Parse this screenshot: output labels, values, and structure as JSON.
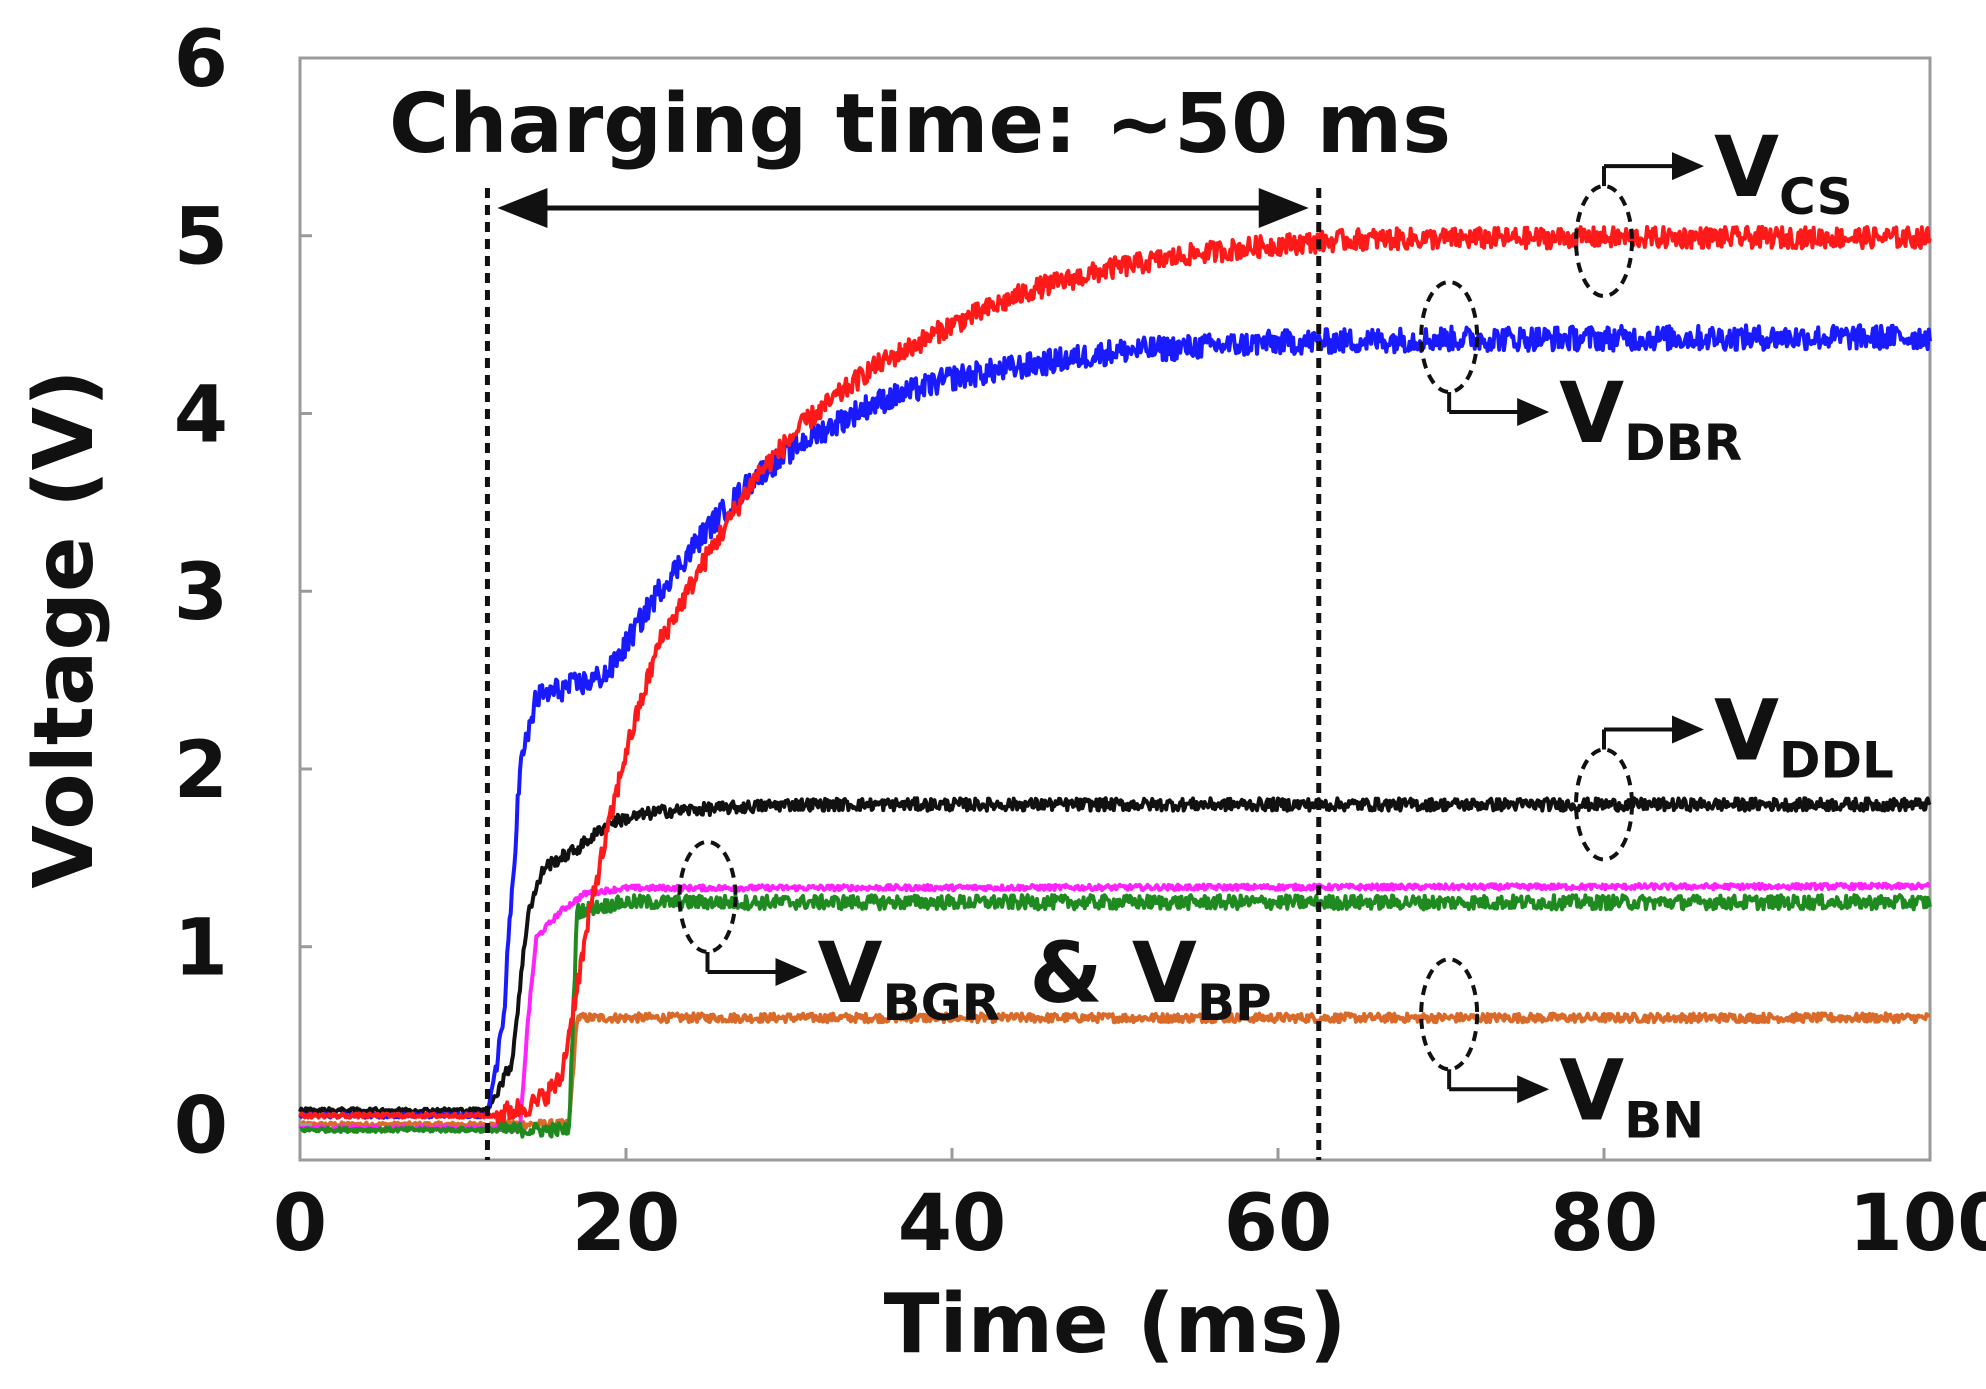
{
  "chart_data": {
    "type": "line",
    "title": "",
    "xlabel": "Time (ms)",
    "ylabel": "Voltage (V)",
    "xlim": [
      0,
      100
    ],
    "ylim": [
      -0.2,
      6
    ],
    "xticks": [
      0,
      20,
      40,
      60,
      80,
      100
    ],
    "yticks": [
      0,
      1,
      2,
      3,
      4,
      5,
      6
    ],
    "xtick_labels": [
      "0",
      "20",
      "40",
      "60",
      "80",
      "100"
    ],
    "ytick_labels": [
      "0",
      "1",
      "2",
      "3",
      "4",
      "5",
      "6"
    ],
    "grid": false,
    "annotation": {
      "text": "Charging time: ~50 ms",
      "start_x": 11.5,
      "end_x": 62.5
    },
    "series": [
      {
        "name": "VCS",
        "label_main": "V",
        "label_sub": "CS",
        "color": "#ff1a1a",
        "noise": 0.06,
        "label_y": 5.15,
        "marker_x": 80,
        "points": [
          [
            0,
            0.05
          ],
          [
            12,
            0.05
          ],
          [
            14.5,
            0.12
          ],
          [
            16,
            0.25
          ],
          [
            18,
            1.3
          ],
          [
            20,
            2.1
          ],
          [
            22,
            2.7
          ],
          [
            25,
            3.2
          ],
          [
            28,
            3.65
          ],
          [
            31,
            3.95
          ],
          [
            35,
            4.25
          ],
          [
            40,
            4.5
          ],
          [
            45,
            4.7
          ],
          [
            50,
            4.82
          ],
          [
            55,
            4.9
          ],
          [
            60,
            4.95
          ],
          [
            65,
            4.98
          ],
          [
            80,
            4.99
          ],
          [
            100,
            4.99
          ]
        ]
      },
      {
        "name": "VDBR",
        "label_main": "V",
        "label_sub": "DBR",
        "color": "#1a1aff",
        "noise": 0.07,
        "label_y": 4.1,
        "marker_x": 70,
        "points": [
          [
            0,
            0.05
          ],
          [
            11.5,
            0.05
          ],
          [
            12.5,
            0.6
          ],
          [
            13.5,
            2.0
          ],
          [
            14.5,
            2.4
          ],
          [
            16,
            2.45
          ],
          [
            18,
            2.5
          ],
          [
            19,
            2.55
          ],
          [
            20,
            2.7
          ],
          [
            22,
            3.0
          ],
          [
            25,
            3.35
          ],
          [
            28,
            3.65
          ],
          [
            31,
            3.85
          ],
          [
            35,
            4.05
          ],
          [
            40,
            4.2
          ],
          [
            50,
            4.35
          ],
          [
            60,
            4.4
          ],
          [
            70,
            4.42
          ],
          [
            100,
            4.43
          ]
        ]
      },
      {
        "name": "VDDL",
        "label_main": "V",
        "label_sub": "DDL",
        "color": "#111111",
        "noise": 0.035,
        "label_y": 2.15,
        "marker_x": 80,
        "points": [
          [
            0,
            0.08
          ],
          [
            11.5,
            0.08
          ],
          [
            13,
            0.35
          ],
          [
            14,
            1.2
          ],
          [
            15,
            1.45
          ],
          [
            17,
            1.55
          ],
          [
            19,
            1.7
          ],
          [
            22,
            1.76
          ],
          [
            30,
            1.8
          ],
          [
            100,
            1.8
          ]
        ]
      },
      {
        "name": "VBGR",
        "label_main": "V",
        "label_sub": "BGR",
        "color": "#ff22ff",
        "noise": 0.015,
        "label_y": null,
        "marker_x": null,
        "points": [
          [
            0,
            -0.02
          ],
          [
            13.5,
            -0.02
          ],
          [
            14,
            0.6
          ],
          [
            14.5,
            1.05
          ],
          [
            16,
            1.2
          ],
          [
            17.5,
            1.3
          ],
          [
            20,
            1.33
          ],
          [
            100,
            1.34
          ]
        ]
      },
      {
        "name": "VBP",
        "label_main": "V",
        "label_sub": "BP",
        "color": "#1f8a1f",
        "noise": 0.04,
        "label_y": 0.95,
        "marker_x": 25,
        "points": [
          [
            0,
            -0.03
          ],
          [
            16.5,
            -0.03
          ],
          [
            17,
            1.2
          ],
          [
            18,
            1.22
          ],
          [
            20,
            1.25
          ],
          [
            100,
            1.25
          ]
        ]
      },
      {
        "name": "VBN",
        "label_main": "V",
        "label_sub": "BN",
        "color": "#d96a2a",
        "noise": 0.025,
        "label_y": 0.35,
        "marker_x": 70,
        "points": [
          [
            0,
            0.0
          ],
          [
            16.5,
            0.0
          ],
          [
            17,
            0.6
          ],
          [
            18,
            0.6
          ],
          [
            100,
            0.6
          ]
        ]
      }
    ],
    "series_labels": {
      "VCS": {
        "main": "V",
        "sub": "CS"
      },
      "VDBR": {
        "main": "V",
        "sub": "DBR"
      },
      "VDDL": {
        "main": "V",
        "sub": "DDL"
      },
      "VBGR_VBP": {
        "main1": "V",
        "sub1": "BGR",
        "amp": " & ",
        "main2": "V",
        "sub2": "BP"
      },
      "VBN": {
        "main": "V",
        "sub": "BN"
      }
    }
  }
}
